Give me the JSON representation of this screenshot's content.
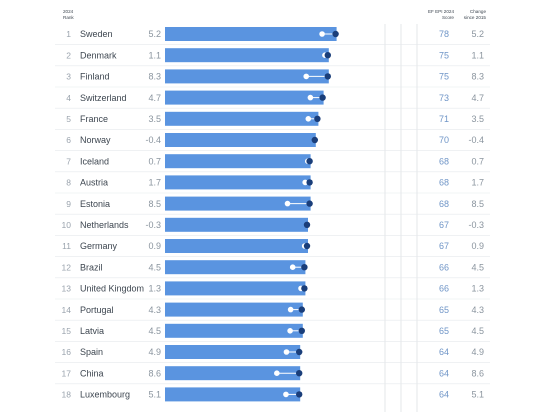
{
  "headers": {
    "rank": [
      "2024",
      "Rank"
    ],
    "score": [
      "EF EPI 2024",
      "Score"
    ],
    "change": [
      "Change",
      "since 2015"
    ]
  },
  "chart_data": {
    "type": "bar",
    "orientation": "horizontal",
    "title": "",
    "xlim": [
      0,
      100
    ],
    "colors": {
      "bar": "#5a94e0",
      "current_marker": "#1a3e7a",
      "score_text": "#6f95c7"
    },
    "rows": [
      {
        "rank": "1",
        "country": "Sweden",
        "score": 78,
        "change": 5.2
      },
      {
        "rank": "2",
        "country": "Denmark",
        "score": 75,
        "change": 1.1
      },
      {
        "rank": "3",
        "country": "Finland",
        "score": 75,
        "change": 8.3
      },
      {
        "rank": "4",
        "country": "Switzerland",
        "score": 73,
        "change": 4.7
      },
      {
        "rank": "5",
        "country": "France",
        "score": 71,
        "change": 3.5
      },
      {
        "rank": "6",
        "country": "Norway",
        "score": 70,
        "change": -0.4
      },
      {
        "rank": "7",
        "country": "Iceland",
        "score": 68,
        "change": 0.7
      },
      {
        "rank": "8",
        "country": "Austria",
        "score": 68,
        "change": 1.7
      },
      {
        "rank": "9",
        "country": "Estonia",
        "score": 68,
        "change": 8.5
      },
      {
        "rank": "10",
        "country": "Netherlands",
        "score": 67,
        "change": -0.3
      },
      {
        "rank": "11",
        "country": "Germany",
        "score": 67,
        "change": 0.9
      },
      {
        "rank": "12",
        "country": "Brazil",
        "score": 66,
        "change": 4.5
      },
      {
        "rank": "13",
        "country": "United Kingdom",
        "score": 66,
        "change": 1.3
      },
      {
        "rank": "14",
        "country": "Portugal",
        "score": 65,
        "change": 4.3
      },
      {
        "rank": "15",
        "country": "Latvia",
        "score": 65,
        "change": 4.5
      },
      {
        "rank": "16",
        "country": "Spain",
        "score": 64,
        "change": 4.9
      },
      {
        "rank": "17",
        "country": "China",
        "score": 64,
        "change": 8.6
      },
      {
        "rank": "18",
        "country": "Luxembourg",
        "score": 64,
        "change": 5.1
      }
    ]
  }
}
